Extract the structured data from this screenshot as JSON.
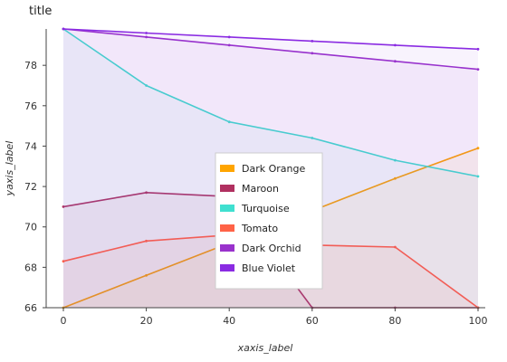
{
  "chart_data": {
    "type": "area",
    "title": "title",
    "xlabel": "xaxis_label",
    "ylabel": "yaxis_label",
    "x": [
      0,
      20,
      40,
      60,
      80,
      100
    ],
    "xlim": [
      0,
      100
    ],
    "ylim": [
      66,
      79.8
    ],
    "x_ticks": [
      "0",
      "20",
      "40",
      "60",
      "80",
      "100"
    ],
    "y_ticks": [
      "66",
      "68",
      "70",
      "72",
      "74",
      "76",
      "78"
    ],
    "x_tick_values": [
      0,
      20,
      40,
      60,
      80,
      100
    ],
    "y_tick_values": [
      66,
      68,
      70,
      72,
      74,
      76,
      78
    ],
    "grid": false,
    "legend_position": "center",
    "series": [
      {
        "name": "Dark Orange",
        "color": "#FFA500",
        "values": [
          66.0,
          67.6,
          69.2,
          70.8,
          72.4,
          73.9
        ]
      },
      {
        "name": "Maroon",
        "color": "#B03060",
        "values": [
          71.0,
          71.7,
          71.5,
          66.0,
          66.0,
          66.0
        ]
      },
      {
        "name": "Turquoise",
        "color": "#40E0D0",
        "values": [
          79.8,
          77.0,
          75.2,
          74.4,
          73.3,
          72.5
        ]
      },
      {
        "name": "Tomato",
        "color": "#FF6347",
        "values": [
          68.3,
          69.3,
          69.6,
          69.1,
          69.0,
          66.0
        ]
      },
      {
        "name": "Dark Orchid",
        "color": "#9932CC",
        "values": [
          79.8,
          79.4,
          79.0,
          78.6,
          78.2,
          77.8
        ]
      },
      {
        "name": "Blue Violet",
        "color": "#8A2BE2",
        "values": [
          79.8,
          79.6,
          79.4,
          79.2,
          79.0,
          78.8
        ]
      }
    ]
  }
}
